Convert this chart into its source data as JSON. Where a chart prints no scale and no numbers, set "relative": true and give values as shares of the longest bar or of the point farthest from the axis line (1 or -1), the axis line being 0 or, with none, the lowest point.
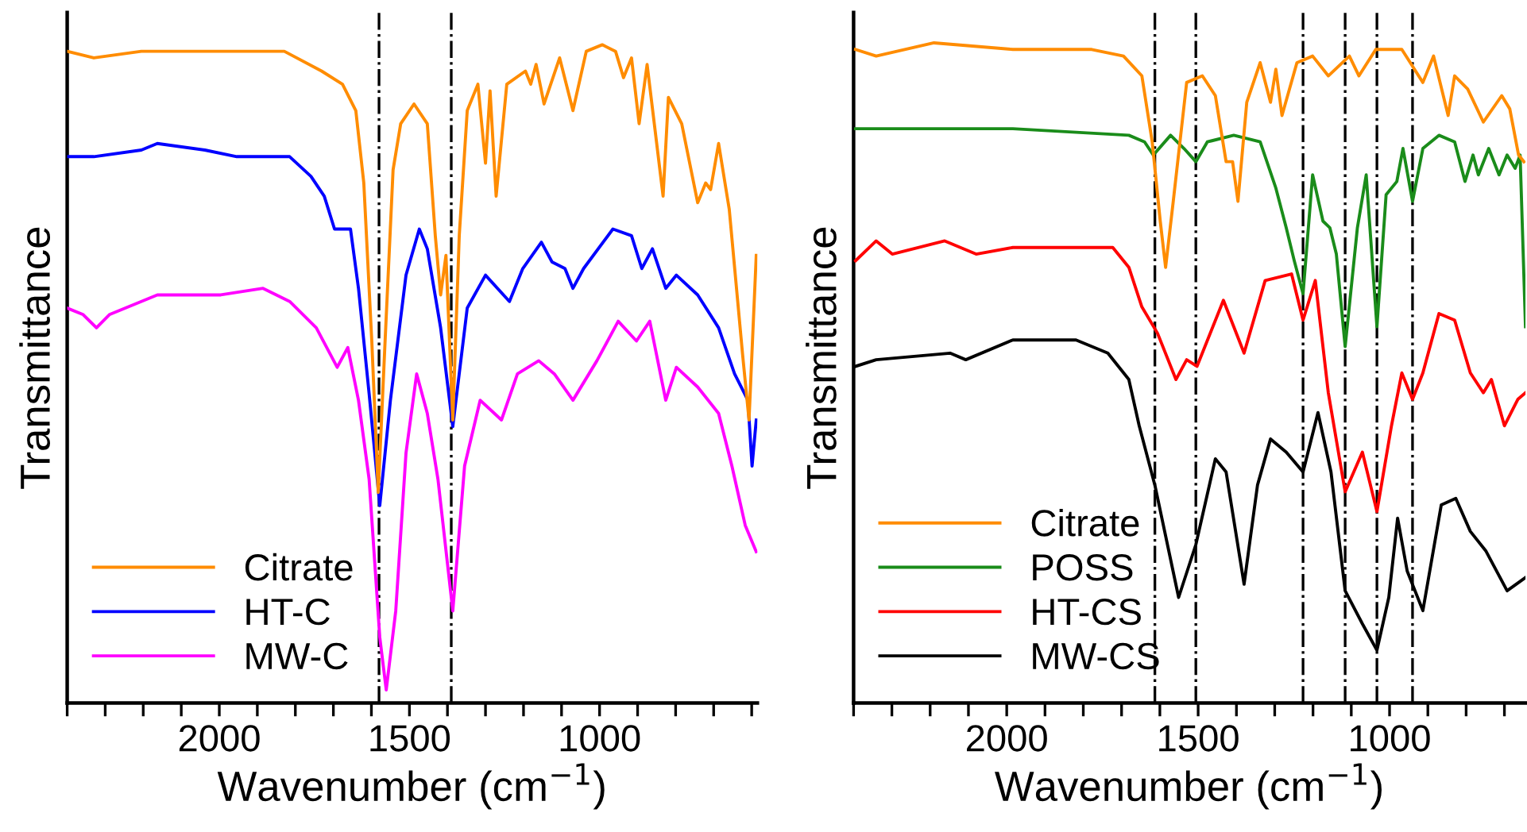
{
  "chart_data": [
    {
      "type": "line",
      "relative": true,
      "xlabel": "Wavenumber (cm$^{−1}$)",
      "ylabel": "Transmittance",
      "xlim": [
        2400,
        585
      ],
      "xticks": [
        {
          "value": 2400,
          "label": null
        },
        {
          "value": 2300,
          "label": null
        },
        {
          "value": 2200,
          "label": null
        },
        {
          "value": 2100,
          "label": null
        },
        2000,
        {
          "value": 1900,
          "label": null
        },
        {
          "value": 1800,
          "label": null
        },
        {
          "value": 1700,
          "label": null
        },
        {
          "value": 1600,
          "label": null
        },
        1500,
        {
          "value": 1400,
          "label": null
        },
        {
          "value": 1300,
          "label": null
        },
        {
          "value": 1200,
          "label": null
        },
        {
          "value": 1100,
          "label": null
        },
        1000,
        {
          "value": 900,
          "label": null
        },
        {
          "value": 800,
          "label": null
        },
        {
          "value": 700,
          "label": null
        },
        {
          "value": 600,
          "label": null
        }
      ],
      "tick_labels": "x",
      "legend": "bottom left",
      "grid": false,
      "line_style": "solid",
      "marker": "none",
      "ref_lines": [
        {
          "axis": "x",
          "value": 1580,
          "color": "#000000",
          "line_style": "dashdot"
        },
        {
          "axis": "x",
          "value": 1390,
          "color": "#000000",
          "line_style": "dashdot"
        }
      ],
      "series": [
        {
          "name": "Citrate",
          "color": "#ff8c00",
          "x": [
            2400,
            2330,
            2205,
            1996,
            1829,
            1731,
            1676,
            1641,
            1620,
            1599,
            1582,
            1564,
            1543,
            1523,
            1488,
            1453,
            1432,
            1418,
            1404,
            1386,
            1369,
            1348,
            1320,
            1300,
            1288,
            1272,
            1244,
            1195,
            1181,
            1167,
            1146,
            1105,
            1070,
            1035,
            993,
            958,
            937,
            916,
            896,
            875,
            833,
            819,
            784,
            742,
            721,
            708,
            687,
            659,
            624,
            607,
            588
          ],
          "values": [
            0.99,
            0.98,
            0.99,
            0.99,
            0.99,
            0.96,
            0.94,
            0.9,
            0.79,
            0.55,
            0.32,
            0.55,
            0.81,
            0.88,
            0.91,
            0.88,
            0.71,
            0.62,
            0.68,
            0.43,
            0.71,
            0.9,
            0.94,
            0.82,
            0.93,
            0.77,
            0.94,
            0.96,
            0.94,
            0.97,
            0.91,
            0.98,
            0.9,
            0.99,
            1.0,
            0.99,
            0.95,
            0.98,
            0.88,
            0.97,
            0.77,
            0.92,
            0.88,
            0.76,
            0.79,
            0.78,
            0.85,
            0.75,
            0.53,
            0.43,
            0.68
          ]
        },
        {
          "name": "HT-C",
          "color": "#0000ff",
          "x": [
            2400,
            2330,
            2205,
            2163,
            2038,
            1954,
            1815,
            1759,
            1724,
            1697,
            1655,
            1634,
            1606,
            1578,
            1550,
            1509,
            1474,
            1453,
            1418,
            1386,
            1348,
            1300,
            1237,
            1202,
            1153,
            1125,
            1091,
            1070,
            1042,
            965,
            916,
            889,
            861,
            826,
            798,
            742,
            687,
            645,
            610,
            599,
            588
          ],
          "values": [
            0.83,
            0.83,
            0.84,
            0.85,
            0.84,
            0.83,
            0.83,
            0.8,
            0.77,
            0.72,
            0.72,
            0.63,
            0.47,
            0.3,
            0.46,
            0.65,
            0.72,
            0.69,
            0.57,
            0.42,
            0.6,
            0.65,
            0.61,
            0.66,
            0.7,
            0.67,
            0.66,
            0.63,
            0.66,
            0.72,
            0.71,
            0.66,
            0.69,
            0.63,
            0.65,
            0.62,
            0.57,
            0.5,
            0.46,
            0.36,
            0.43
          ]
        },
        {
          "name": "MW-C",
          "color": "#ff00ff",
          "x": [
            2400,
            2358,
            2323,
            2289,
            2163,
            1996,
            1885,
            1815,
            1745,
            1690,
            1662,
            1634,
            1606,
            1578,
            1561,
            1536,
            1509,
            1481,
            1453,
            1425,
            1386,
            1355,
            1314,
            1258,
            1216,
            1160,
            1119,
            1070,
            1007,
            951,
            903,
            868,
            826,
            798,
            742,
            687,
            652,
            617,
            588
          ],
          "values": [
            0.6,
            0.59,
            0.57,
            0.59,
            0.62,
            0.62,
            0.63,
            0.61,
            0.57,
            0.51,
            0.54,
            0.46,
            0.34,
            0.1,
            0.02,
            0.14,
            0.38,
            0.5,
            0.44,
            0.34,
            0.14,
            0.36,
            0.46,
            0.43,
            0.5,
            0.52,
            0.5,
            0.46,
            0.52,
            0.58,
            0.55,
            0.58,
            0.46,
            0.51,
            0.48,
            0.44,
            0.36,
            0.27,
            0.23
          ]
        }
      ]
    },
    {
      "type": "line",
      "relative": true,
      "xlabel": "Wavenumber (cm$^{−1}$)",
      "ylabel": "Transmittance",
      "xlim": [
        2400,
        645
      ],
      "xticks": [
        {
          "value": 2400,
          "label": null
        },
        {
          "value": 2300,
          "label": null
        },
        {
          "value": 2200,
          "label": null
        },
        {
          "value": 2100,
          "label": null
        },
        2000,
        {
          "value": 1900,
          "label": null
        },
        {
          "value": 1800,
          "label": null
        },
        {
          "value": 1700,
          "label": null
        },
        {
          "value": 1600,
          "label": null
        },
        1500,
        {
          "value": 1400,
          "label": null
        },
        {
          "value": 1300,
          "label": null
        },
        {
          "value": 1200,
          "label": null
        },
        {
          "value": 1100,
          "label": null
        },
        1000,
        {
          "value": 900,
          "label": null
        },
        {
          "value": 800,
          "label": null
        },
        {
          "value": 700,
          "label": null
        }
      ],
      "tick_labels": "x",
      "legend": "bottom left",
      "grid": false,
      "line_style": "solid",
      "marker": "none",
      "ref_lines": [
        {
          "axis": "x",
          "value": 1613,
          "color": "#000000",
          "line_style": "dashdot"
        },
        {
          "axis": "x",
          "value": 1506,
          "color": "#000000",
          "line_style": "dashdot"
        },
        {
          "axis": "x",
          "value": 1226,
          "color": "#000000",
          "line_style": "dashdot"
        },
        {
          "axis": "x",
          "value": 1116,
          "color": "#000000",
          "line_style": "dashdot"
        },
        {
          "axis": "x",
          "value": 1033,
          "color": "#000000",
          "line_style": "dashdot"
        },
        {
          "axis": "x",
          "value": 940,
          "color": "#000000",
          "line_style": "dashdot"
        }
      ],
      "series": [
        {
          "name": "Citrate",
          "color": "#ff8c00",
          "x": [
            2395,
            2341,
            2190,
            1984,
            1778,
            1695,
            1647,
            1620,
            1599,
            1585,
            1565,
            1530,
            1489,
            1455,
            1427,
            1410,
            1396,
            1373,
            1338,
            1311,
            1297,
            1281,
            1242,
            1201,
            1160,
            1105,
            1080,
            1036,
            968,
            913,
            885,
            847,
            830,
            796,
            755,
            707,
            686,
            663,
            649
          ],
          "values": [
            0.99,
            0.98,
            1.0,
            0.99,
            0.99,
            0.98,
            0.95,
            0.85,
            0.73,
            0.66,
            0.76,
            0.94,
            0.95,
            0.92,
            0.82,
            0.82,
            0.76,
            0.91,
            0.97,
            0.91,
            0.96,
            0.89,
            0.97,
            0.98,
            0.95,
            0.98,
            0.95,
            0.99,
            0.99,
            0.94,
            0.98,
            0.89,
            0.95,
            0.93,
            0.88,
            0.92,
            0.9,
            0.83,
            0.82
          ]
        },
        {
          "name": "POSS",
          "color": "#1a8c1a",
          "x": [
            2395,
            2258,
            1984,
            1681,
            1640,
            1617,
            1572,
            1537,
            1506,
            1476,
            1407,
            1338,
            1297,
            1270,
            1249,
            1226,
            1201,
            1174,
            1156,
            1139,
            1116,
            1084,
            1061,
            1033,
            1009,
            981,
            965,
            940,
            913,
            871,
            830,
            803,
            782,
            768,
            741,
            714,
            693,
            672,
            659,
            645
          ],
          "values": [
            0.87,
            0.87,
            0.87,
            0.86,
            0.85,
            0.83,
            0.86,
            0.84,
            0.82,
            0.85,
            0.86,
            0.85,
            0.78,
            0.72,
            0.67,
            0.62,
            0.8,
            0.73,
            0.72,
            0.68,
            0.54,
            0.72,
            0.8,
            0.57,
            0.77,
            0.79,
            0.84,
            0.76,
            0.84,
            0.86,
            0.85,
            0.79,
            0.83,
            0.8,
            0.84,
            0.8,
            0.83,
            0.81,
            0.83,
            0.57
          ]
        },
        {
          "name": "HT-CS",
          "color": "#ff0000",
          "x": [
            2395,
            2341,
            2299,
            2162,
            2080,
            1984,
            1819,
            1723,
            1681,
            1647,
            1606,
            1558,
            1530,
            1503,
            1434,
            1380,
            1325,
            1256,
            1226,
            1194,
            1160,
            1116,
            1071,
            1033,
            995,
            968,
            940,
            913,
            871,
            830,
            789,
            755,
            734,
            700,
            665,
            645
          ],
          "values": [
            0.67,
            0.7,
            0.68,
            0.7,
            0.68,
            0.69,
            0.69,
            0.69,
            0.66,
            0.6,
            0.56,
            0.49,
            0.52,
            0.51,
            0.61,
            0.53,
            0.64,
            0.65,
            0.58,
            0.64,
            0.47,
            0.32,
            0.38,
            0.29,
            0.42,
            0.5,
            0.46,
            0.5,
            0.59,
            0.58,
            0.5,
            0.47,
            0.49,
            0.42,
            0.46,
            0.47
          ]
        },
        {
          "name": "MW-CS",
          "color": "#000000",
          "x": [
            2395,
            2341,
            2148,
            2107,
            1984,
            1819,
            1736,
            1681,
            1654,
            1613,
            1551,
            1506,
            1455,
            1427,
            1380,
            1345,
            1311,
            1270,
            1226,
            1187,
            1153,
            1116,
            1071,
            1033,
            1002,
            979,
            954,
            913,
            865,
            827,
            789,
            748,
            693,
            645
          ],
          "values": [
            0.51,
            0.52,
            0.53,
            0.52,
            0.55,
            0.55,
            0.53,
            0.49,
            0.42,
            0.33,
            0.16,
            0.24,
            0.37,
            0.35,
            0.18,
            0.33,
            0.4,
            0.38,
            0.35,
            0.44,
            0.35,
            0.17,
            0.12,
            0.08,
            0.16,
            0.28,
            0.2,
            0.14,
            0.3,
            0.31,
            0.26,
            0.23,
            0.17,
            0.19
          ]
        }
      ]
    }
  ]
}
